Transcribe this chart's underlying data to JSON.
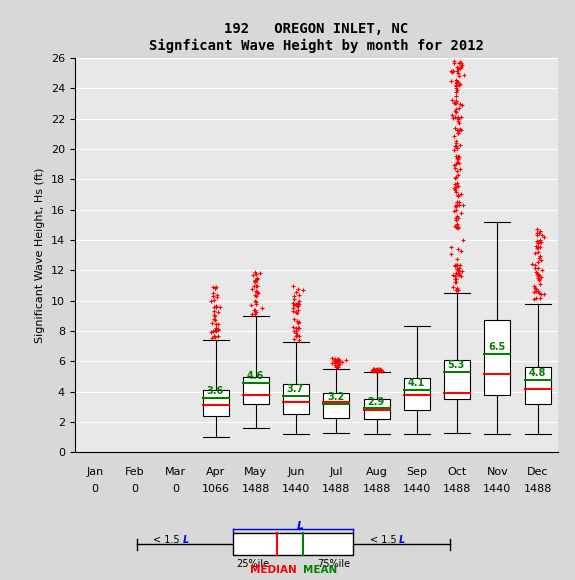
{
  "title_line1": "192   OREGON INLET, NC",
  "title_line2": "Signficant Wave Height by month for 2012",
  "ylabel": "Significant Wave Height, Hs (ft)",
  "months": [
    "Jan",
    "Feb",
    "Mar",
    "Apr",
    "May",
    "Jun",
    "Jul",
    "Aug",
    "Sep",
    "Oct",
    "Nov",
    "Dec"
  ],
  "counts": [
    "0",
    "0",
    "0",
    "1066",
    "1488",
    "1440",
    "1488",
    "1488",
    "1440",
    "1488",
    "1440",
    "1488"
  ],
  "ylim": [
    0,
    26
  ],
  "yticks": [
    0,
    2,
    4,
    6,
    8,
    10,
    12,
    14,
    16,
    18,
    20,
    22,
    24,
    26
  ],
  "box_data": {
    "Apr": {
      "q1": 2.4,
      "median": 3.1,
      "mean": 3.6,
      "q3": 4.1,
      "whisker_low": 1.0,
      "whisker_high": 7.4,
      "outlier_max": 11.0,
      "has_outliers": true
    },
    "May": {
      "q1": 3.2,
      "median": 3.8,
      "mean": 4.6,
      "q3": 5.0,
      "whisker_low": 1.6,
      "whisker_high": 9.0,
      "outlier_max": 12.1,
      "has_outliers": true
    },
    "Jun": {
      "q1": 2.5,
      "median": 3.3,
      "mean": 3.7,
      "q3": 4.5,
      "whisker_low": 1.2,
      "whisker_high": 7.3,
      "outlier_max": 11.0,
      "has_outliers": true
    },
    "Jul": {
      "q1": 2.3,
      "median": 3.3,
      "mean": 3.2,
      "q3": 3.9,
      "whisker_low": 1.3,
      "whisker_high": 5.5,
      "outlier_max": 6.2,
      "has_outliers": true
    },
    "Aug": {
      "q1": 2.2,
      "median": 2.8,
      "mean": 2.9,
      "q3": 3.5,
      "whisker_low": 1.2,
      "whisker_high": 5.3,
      "outlier_max": 5.5,
      "has_outliers": true
    },
    "Sep": {
      "q1": 2.8,
      "median": 3.8,
      "mean": 4.1,
      "q3": 4.9,
      "whisker_low": 1.2,
      "whisker_high": 8.3,
      "outlier_max": 8.3,
      "has_outliers": false
    },
    "Oct": {
      "q1": 3.5,
      "median": 3.9,
      "mean": 5.3,
      "q3": 6.1,
      "whisker_low": 1.3,
      "whisker_high": 10.5,
      "outlier_max": 25.9,
      "has_outliers": true
    },
    "Nov": {
      "q1": 3.8,
      "median": 5.2,
      "mean": 6.5,
      "q3": 8.7,
      "whisker_low": 1.2,
      "whisker_high": 15.2,
      "outlier_max": 15.2,
      "has_outliers": false
    },
    "Dec": {
      "q1": 3.2,
      "median": 4.2,
      "mean": 4.8,
      "q3": 5.6,
      "whisker_low": 1.2,
      "whisker_high": 9.8,
      "outlier_max": 14.8,
      "has_outliers": true
    }
  },
  "month_positions": {
    "Apr": 4,
    "May": 5,
    "Jun": 6,
    "Jul": 7,
    "Aug": 8,
    "Sep": 9,
    "Oct": 10,
    "Nov": 11,
    "Dec": 12
  },
  "bg_color": "#d8d8d8",
  "plot_bg_color": "#e8e8e8",
  "box_color": "white",
  "median_color": "red",
  "mean_color": "green",
  "outlier_color": "red",
  "whisker_color": "black",
  "box_edge_color": "black",
  "box_width": 0.65
}
